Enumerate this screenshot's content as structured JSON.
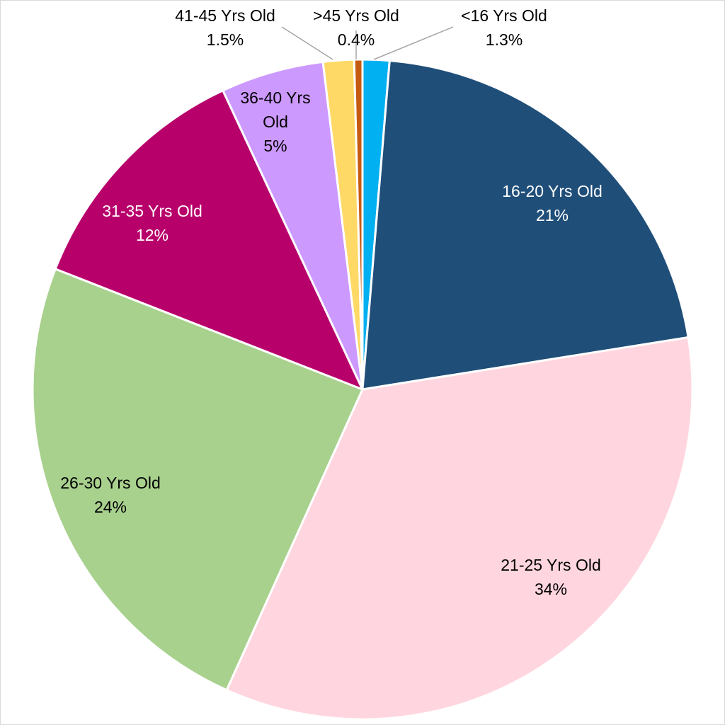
{
  "chart_data": {
    "type": "pie",
    "title": "",
    "categories": [
      "<16 Yrs Old",
      "16-20 Yrs Old",
      "21-25 Yrs Old",
      "26-30 Yrs Old",
      "31-35 Yrs Old",
      "36-40 Yrs Old",
      "41-45 Yrs Old",
      ">45 Yrs Old"
    ],
    "values": [
      1.3,
      21,
      34,
      24,
      12,
      5,
      1.5,
      0.4
    ],
    "value_labels": [
      "1.3%",
      "21%",
      "34%",
      "24%",
      "12%",
      "5%",
      "1.5%",
      "0.4%"
    ],
    "colors": [
      "#00b0f0",
      "#1f4e79",
      "#ffd6df",
      "#a9d18e",
      "#b8006b",
      "#cc99ff",
      "#ffd966",
      "#c55a11"
    ],
    "label_colors": [
      "#000000",
      "#ffffff",
      "#000000",
      "#000000",
      "#ffffff",
      "#000000",
      "#000000",
      "#000000"
    ],
    "start_angle_deg": 0,
    "direction": "clockwise",
    "legend": "none"
  }
}
